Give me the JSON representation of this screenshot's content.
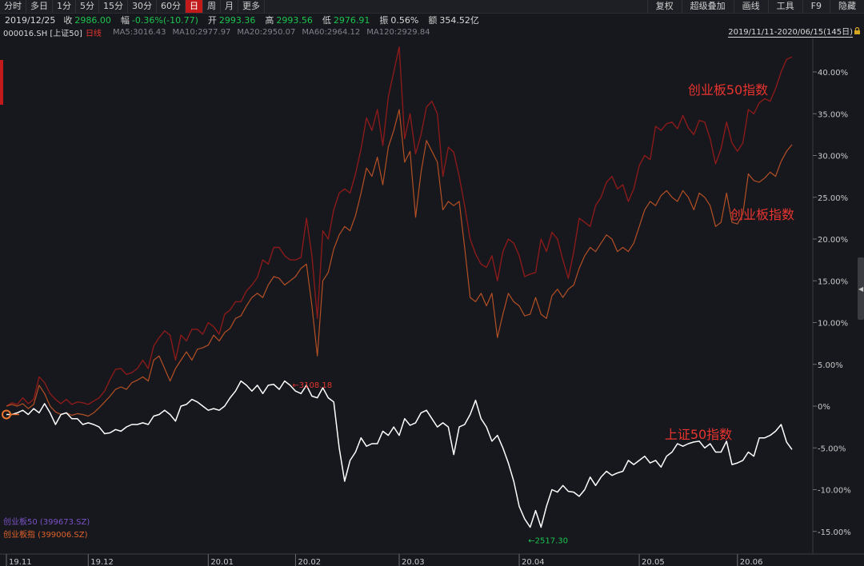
{
  "toolbar": {
    "left_items": [
      "分时",
      "多日",
      "1分",
      "5分",
      "15分",
      "30分",
      "60分",
      "日",
      "周",
      "月",
      "更多"
    ],
    "active": "日",
    "right_items": [
      "复权",
      "超级叠加",
      "画线",
      "工具",
      "F9",
      "隐藏"
    ]
  },
  "quote": {
    "date": "2019/12/25",
    "close_label": "收",
    "close": "2986.00",
    "change_label": "幅",
    "change": "-0.36%(-10.77)",
    "open_label": "开",
    "open": "2993.36",
    "high_label": "高",
    "high": "2993.56",
    "low_label": "低",
    "low": "2976.91",
    "amp_label": "振",
    "amp": "0.56%",
    "amount_label": "额",
    "amount": "354.52亿"
  },
  "ma": {
    "code": "000016.SH [上证50]",
    "period": "日线",
    "ma5": "MA5:3016.43",
    "ma10": "MA10:2977.97",
    "ma20": "MA20:2950.07",
    "ma60": "MA60:2964.12",
    "ma120": "MA120:2929.84"
  },
  "range_text": "2019/11/11-2020/06/15(145日)",
  "legend": {
    "item1": "创业板50 (399673.SZ)",
    "item2": "创业板指 (399006.SZ)"
  },
  "colors": {
    "background": "#16181d",
    "series_cyb50": "#8b1a1a",
    "series_cyb": "#b54f24",
    "series_sz50": "#ffffff",
    "annotation_red": "#e8342e",
    "annotation_green": "#1bc44e"
  },
  "chart_data": {
    "type": "line",
    "ylim": [
      -16.5,
      44
    ],
    "yticks": [
      40,
      35,
      30,
      25,
      20,
      15,
      10,
      5,
      0,
      -5,
      -10,
      -15
    ],
    "ytick_labels": [
      "40.00%",
      "35.00%",
      "30.00%",
      "25.00%",
      "20.00%",
      "15.00%",
      "10.00%",
      "5.00%",
      "0%",
      "-5.00%",
      "-10.00%",
      "-15.00%"
    ],
    "x_count": 145,
    "xticks": [
      {
        "label": "19.11",
        "index": 0
      },
      {
        "label": "19.12",
        "index": 15
      },
      {
        "label": "20.01",
        "index": 37
      },
      {
        "label": "20.02",
        "index": 53
      },
      {
        "label": "20.03",
        "index": 72
      },
      {
        "label": "20.04",
        "index": 94
      },
      {
        "label": "20.05",
        "index": 116
      },
      {
        "label": "20.06",
        "index": 134
      }
    ],
    "series": [
      {
        "name": "创业板50",
        "label": "创业板50指数",
        "key": "cyb50",
        "values": [
          0,
          0.4,
          0.2,
          1.0,
          0.3,
          0.8,
          3.5,
          2.8,
          1.5,
          0.8,
          0.3,
          0.8,
          0.2,
          0.5,
          0.4,
          0.2,
          0.6,
          1.0,
          1.8,
          3.2,
          4.4,
          4.5,
          3.8,
          4.0,
          4.5,
          5.5,
          4.5,
          7.2,
          8.2,
          9.0,
          8.5,
          5.5,
          8.5,
          7.8,
          9.2,
          9.2,
          8.6,
          10.0,
          9.5,
          8.6,
          11.0,
          11.5,
          12.5,
          12.5,
          13.8,
          14.5,
          15.4,
          17.5,
          17.0,
          19.0,
          19.0,
          18.0,
          17.5,
          17.5,
          17.8,
          22.5,
          18.0,
          10.5,
          21.0,
          20.0,
          23.5,
          25.5,
          26.0,
          25.5,
          27.8,
          30.8,
          34.5,
          33.0,
          35.5,
          31.2,
          37.0,
          40.0,
          43.0,
          32.0,
          35.0,
          30.2,
          32.5,
          35.8,
          36.5,
          35.0,
          27.5,
          31.0,
          30.4,
          27.5,
          24.0,
          20.0,
          18.2,
          17.0,
          16.6,
          18.0,
          15.0,
          18.5,
          20.0,
          19.5,
          18.0,
          15.5,
          15.8,
          16.0,
          20.0,
          18.5,
          20.8,
          20.0,
          17.5,
          15.3,
          18.5,
          22.5,
          22.0,
          21.5,
          24.0,
          25.0,
          26.8,
          27.5,
          26.0,
          26.5,
          24.5,
          26.0,
          28.8,
          30.0,
          29.5,
          33.5,
          33.0,
          33.8,
          34.0,
          33.2,
          34.8,
          33.3,
          32.5,
          34.2,
          34.0,
          32.0,
          29.0,
          30.8,
          34.0,
          31.5,
          30.5,
          31.5,
          35.5,
          35.0,
          36.3,
          36.8,
          36.5,
          38.0,
          40.0,
          41.5,
          41.8
        ]
      },
      {
        "name": "创业板指",
        "label": "创业板指数",
        "key": "cyb",
        "values": [
          0,
          0.2,
          0.0,
          0.3,
          -0.3,
          0.2,
          2.5,
          1.5,
          0.0,
          -0.7,
          -1.0,
          -0.8,
          -1.1,
          -0.9,
          -1.0,
          -1.2,
          -0.8,
          -0.2,
          0.5,
          1.2,
          2.0,
          2.3,
          2.0,
          2.8,
          3.1,
          3.5,
          3.0,
          5.5,
          6.0,
          4.5,
          3.0,
          4.5,
          5.5,
          6.5,
          5.5,
          6.8,
          7.0,
          7.3,
          8.5,
          7.8,
          8.8,
          9.3,
          10.5,
          10.8,
          12.0,
          13.0,
          13.5,
          13.0,
          14.5,
          15.5,
          15.3,
          14.5,
          15.0,
          15.5,
          16.5,
          17.0,
          12.0,
          6.0,
          15.0,
          16.0,
          18.8,
          20.5,
          21.5,
          21.0,
          22.8,
          25.5,
          28.5,
          27.5,
          29.8,
          26.5,
          31.0,
          33.0,
          35.5,
          29.2,
          30.5,
          22.6,
          28.0,
          31.8,
          30.5,
          29.2,
          23.5,
          24.5,
          24.0,
          24.5,
          19.0,
          13.0,
          12.5,
          13.5,
          12.0,
          13.5,
          8.2,
          11.0,
          13.5,
          12.5,
          12.0,
          10.8,
          11.0,
          13.0,
          11.0,
          10.5,
          13.2,
          14.0,
          13.0,
          14.0,
          14.5,
          16.5,
          18.0,
          19.0,
          18.5,
          19.5,
          20.5,
          20.0,
          18.5,
          19.0,
          18.5,
          19.5,
          21.5,
          23.5,
          24.5,
          24.0,
          25.2,
          25.8,
          25.0,
          24.5,
          25.8,
          25.0,
          23.5,
          25.5,
          25.0,
          24.0,
          21.5,
          22.0,
          25.5,
          22.0,
          21.8,
          23.0,
          27.8,
          27.0,
          26.8,
          27.3,
          28.0,
          27.5,
          29.3,
          30.5,
          31.3
        ]
      },
      {
        "name": "上证50",
        "label": "上证50指数",
        "key": "sz50",
        "values": [
          -1.0,
          -1.0,
          -0.8,
          -0.5,
          -1.0,
          -0.3,
          -0.8,
          0.3,
          -0.8,
          -2.2,
          -1.0,
          -0.8,
          -1.5,
          -1.5,
          -2.2,
          -2.0,
          -2.2,
          -2.5,
          -3.3,
          -3.2,
          -2.8,
          -3.0,
          -2.5,
          -2.2,
          -2.2,
          -2.0,
          -2.2,
          -1.2,
          -1.0,
          -0.5,
          -1.0,
          -1.8,
          0.0,
          0.2,
          0.8,
          0.5,
          0.0,
          -0.5,
          -0.3,
          -0.5,
          0.0,
          1.0,
          1.8,
          3.0,
          2.5,
          1.8,
          2.5,
          1.5,
          2.5,
          2.6,
          2.0,
          3.0,
          2.5,
          1.8,
          1.5,
          2.5,
          1.2,
          1.0,
          2.2,
          1.0,
          0.5,
          -5.0,
          -9.0,
          -6.5,
          -5.5,
          -3.8,
          -4.8,
          -4.5,
          -4.5,
          -3.0,
          -3.5,
          -2.5,
          -3.5,
          -1.5,
          -2.3,
          -2.0,
          -0.8,
          -0.5,
          -1.5,
          -2.5,
          -2.0,
          -2.5,
          -5.8,
          -2.5,
          -2.2,
          -1.0,
          0.7,
          -1.5,
          -2.5,
          -4.2,
          -3.5,
          -5.0,
          -6.8,
          -9.0,
          -12.0,
          -13.5,
          -14.5,
          -12.5,
          -14.5,
          -12.0,
          -10.0,
          -10.3,
          -9.5,
          -10.2,
          -10.3,
          -10.8,
          -10.0,
          -8.5,
          -9.5,
          -8.5,
          -7.8,
          -8.3,
          -8.0,
          -7.8,
          -6.5,
          -7.0,
          -6.5,
          -6.0,
          -6.8,
          -6.5,
          -7.3,
          -6.0,
          -5.5,
          -4.5,
          -4.8,
          -4.5,
          -4.3,
          -4.2,
          -5.0,
          -4.5,
          -5.5,
          -5.5,
          -4.2,
          -7.0,
          -6.8,
          -6.5,
          -5.5,
          -6.0,
          -3.8,
          -3.8,
          -3.5,
          -3.0,
          -2.2,
          -4.3,
          -5.2
        ]
      }
    ],
    "annotations": [
      {
        "text": "←3108.18",
        "series": "sz50",
        "index": 53
      },
      {
        "text": "←2517.30",
        "series": "sz50",
        "index": 98
      }
    ]
  }
}
